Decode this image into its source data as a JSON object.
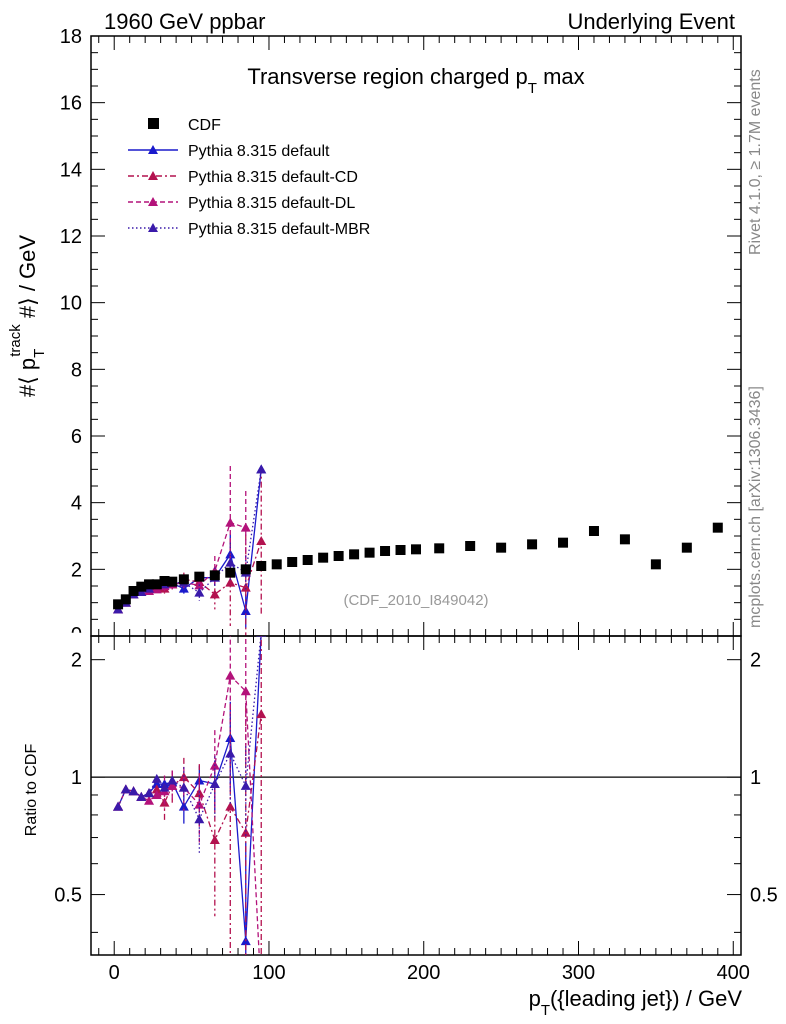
{
  "header": {
    "left": "1960 GeV ppbar",
    "right": "Underlying Event"
  },
  "side": {
    "rivet": "Rivet 4.1.0, ≥ 1.7M events",
    "mcplots": "mcplots.cern.ch [arXiv:1306.3436]"
  },
  "chart_data": {
    "type": "scatter",
    "title": "Transverse region charged pT max",
    "title_parts": {
      "pre": "Transverse region charged p",
      "sub": "T",
      "post": " max"
    },
    "watermark": "(CDF_2010_I849042)",
    "xlabel": "pT({leading jet}) / GeV",
    "xlabel_parts": {
      "pre": "p",
      "sub": "T",
      "post": "({leading jet}) / GeV"
    },
    "ylabel": "#⟨ pT^track #⟩ / GeV",
    "ylabel_parts": {
      "pre": "#⟨ p",
      "sub": "T",
      "sup": "track",
      "post": " #⟩ / GeV"
    },
    "ratio_ylabel": "Ratio to CDF",
    "xlim": [
      -15,
      405
    ],
    "ylim": [
      0,
      18
    ],
    "ratio_ylim": [
      0.35,
      2.3
    ],
    "xticks": [
      "0",
      "100",
      "200",
      "300",
      "400"
    ],
    "yticks": [
      "2",
      "4",
      "6",
      "8",
      "10",
      "12",
      "14",
      "16",
      "18"
    ],
    "ratio_yticks": [
      "0.5",
      "1",
      "2"
    ],
    "legend": [
      {
        "label": "CDF",
        "color": "#000000",
        "style": "square"
      },
      {
        "label": "Pythia 8.315 default",
        "color": "#1a1acc",
        "style": "solid"
      },
      {
        "label": "Pythia 8.315 default-CD",
        "color": "#b3124f",
        "style": "dashdot"
      },
      {
        "label": "Pythia 8.315 default-DL",
        "color": "#b3127a",
        "style": "dashed"
      },
      {
        "label": "Pythia 8.315 default-MBR",
        "color": "#3a1aaa",
        "style": "dotted"
      }
    ],
    "series": [
      {
        "name": "CDF",
        "x": [
          2.5,
          7.5,
          12.5,
          17.5,
          22.5,
          27.5,
          32.5,
          37.5,
          45,
          55,
          65,
          75,
          85,
          95,
          105,
          115,
          125,
          135,
          145,
          155,
          165,
          175,
          185,
          195,
          210,
          230,
          250,
          270,
          290,
          310,
          330,
          350,
          370,
          390
        ],
        "y": [
          0.95,
          1.1,
          1.35,
          1.48,
          1.55,
          1.55,
          1.65,
          1.63,
          1.7,
          1.78,
          1.82,
          1.9,
          2.0,
          2.1,
          2.15,
          2.22,
          2.28,
          2.35,
          2.4,
          2.45,
          2.5,
          2.55,
          2.58,
          2.6,
          2.63,
          2.7,
          2.65,
          2.75,
          2.8,
          3.15,
          2.9,
          2.15,
          2.65,
          3.25
        ]
      },
      {
        "name": "Pythia 8.315 default",
        "x": [
          2.5,
          7.5,
          12.5,
          17.5,
          22.5,
          27.5,
          32.5,
          37.5,
          45,
          55,
          65,
          75,
          85,
          95
        ],
        "y": [
          0.8,
          1.0,
          1.25,
          1.32,
          1.42,
          1.5,
          1.58,
          1.58,
          1.42,
          1.75,
          1.75,
          2.45,
          0.75,
          5.0
        ],
        "err": [
          0,
          0,
          0,
          0,
          0,
          0,
          0,
          0,
          0.15,
          0.15,
          0.25,
          0.6,
          0.5,
          0
        ]
      },
      {
        "name": "Pythia 8.315 default-CD",
        "x": [
          2.5,
          7.5,
          12.5,
          17.5,
          22.5,
          27.5,
          32.5,
          37.5,
          45,
          55,
          65,
          75,
          85,
          95
        ],
        "y": [
          0.8,
          1.0,
          1.25,
          1.32,
          1.42,
          1.45,
          1.42,
          1.55,
          1.7,
          1.62,
          1.25,
          1.6,
          1.45,
          2.85
        ],
        "err": [
          0,
          0,
          0,
          0,
          0,
          0,
          0.15,
          0.15,
          0.2,
          0.3,
          0.45,
          1.3,
          1.6,
          2.2
        ]
      },
      {
        "name": "Pythia 8.315 default-DL",
        "x": [
          2.5,
          7.5,
          12.5,
          17.5,
          22.5,
          27.5,
          32.5,
          37.5,
          45,
          55,
          65,
          75,
          85,
          95
        ],
        "y": [
          0.8,
          1.0,
          1.25,
          1.32,
          1.35,
          1.4,
          1.5,
          1.55,
          1.6,
          1.52,
          1.95,
          3.4,
          3.25,
          0
        ],
        "err": [
          0,
          0,
          0,
          0,
          0,
          0,
          0.15,
          0.15,
          0.2,
          0.3,
          0.45,
          1.7,
          1.1,
          0
        ]
      },
      {
        "name": "Pythia 8.315 default-MBR",
        "x": [
          2.5,
          7.5,
          12.5,
          17.5,
          22.5,
          27.5,
          32.5,
          37.5,
          45,
          55,
          65,
          75,
          85,
          95
        ],
        "y": [
          0.8,
          1.0,
          1.25,
          1.32,
          1.42,
          1.55,
          1.55,
          1.6,
          1.6,
          1.3,
          1.75,
          2.2,
          1.9,
          5.0
        ],
        "err": [
          0,
          0,
          0,
          0,
          0,
          0,
          0,
          0,
          0.2,
          0.25,
          0.3,
          0.6,
          0.5,
          0
        ]
      }
    ],
    "ratio_series": [
      {
        "name": "Pythia 8.315 default",
        "y": [
          0.84,
          0.93,
          0.92,
          0.89,
          0.91,
          0.96,
          0.96,
          0.97,
          0.84,
          0.98,
          0.96,
          1.26,
          0.38,
          2.35
        ],
        "err": [
          0,
          0,
          0,
          0,
          0,
          0,
          0,
          0,
          0.08,
          0.09,
          0.14,
          0.3,
          0.3,
          0
        ]
      },
      {
        "name": "Pythia 8.315 default-CD",
        "y": [
          0.84,
          0.93,
          0.92,
          0.89,
          0.91,
          0.93,
          0.86,
          0.95,
          1.0,
          0.91,
          0.69,
          0.84,
          0.72,
          1.45
        ],
        "err": [
          0,
          0,
          0,
          0,
          0,
          0,
          0.09,
          0.09,
          0.12,
          0.17,
          0.25,
          0.7,
          0.8,
          1.2
        ]
      },
      {
        "name": "Pythia 8.315 default-DL",
        "y": [
          0.84,
          0.93,
          0.92,
          0.89,
          0.87,
          0.9,
          0.92,
          0.95,
          0.94,
          0.85,
          1.07,
          1.82,
          1.66,
          0
        ],
        "err": [
          0,
          0,
          0,
          0,
          0,
          0,
          0.09,
          0.09,
          0.12,
          0.17,
          0.25,
          0.9,
          0.6,
          0
        ]
      },
      {
        "name": "Pythia 8.315 default-MBR",
        "y": [
          0.84,
          0.93,
          0.92,
          0.89,
          0.91,
          0.99,
          0.94,
          0.98,
          0.94,
          0.78,
          0.96,
          1.15,
          0.95,
          2.35
        ],
        "err": [
          0,
          0,
          0,
          0,
          0,
          0,
          0,
          0,
          0.12,
          0.14,
          0.17,
          0.3,
          0.25,
          0
        ]
      }
    ]
  }
}
